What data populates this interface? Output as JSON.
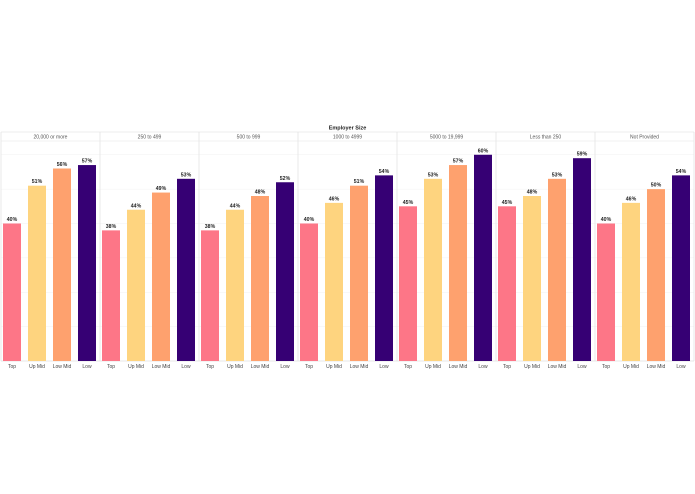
{
  "chart_data": {
    "type": "bar",
    "title": "Employer Size",
    "categories": [
      "Top",
      "Up Mid",
      "Low Mid",
      "Low"
    ],
    "colors": {
      "Top": "#fd7687",
      "Up Mid": "#fed47f",
      "Low Mid": "#fea16e",
      "Low": "#360074"
    },
    "ylim": [
      0,
      64
    ],
    "value_suffix": "%",
    "panels": [
      {
        "name": "20,000 or more",
        "values": [
          40,
          51,
          56,
          57
        ]
      },
      {
        "name": "250 to 499",
        "values": [
          38,
          44,
          49,
          53
        ]
      },
      {
        "name": "500 to 999",
        "values": [
          38,
          44,
          48,
          52
        ]
      },
      {
        "name": "1000 to 4999",
        "values": [
          40,
          46,
          51,
          54
        ]
      },
      {
        "name": "5000 to 19,999",
        "values": [
          45,
          53,
          57,
          60
        ]
      },
      {
        "name": "Less than 250",
        "values": [
          45,
          48,
          53,
          59
        ]
      },
      {
        "name": "Not Provided",
        "values": [
          40,
          46,
          50,
          54
        ]
      }
    ],
    "grid": true
  }
}
